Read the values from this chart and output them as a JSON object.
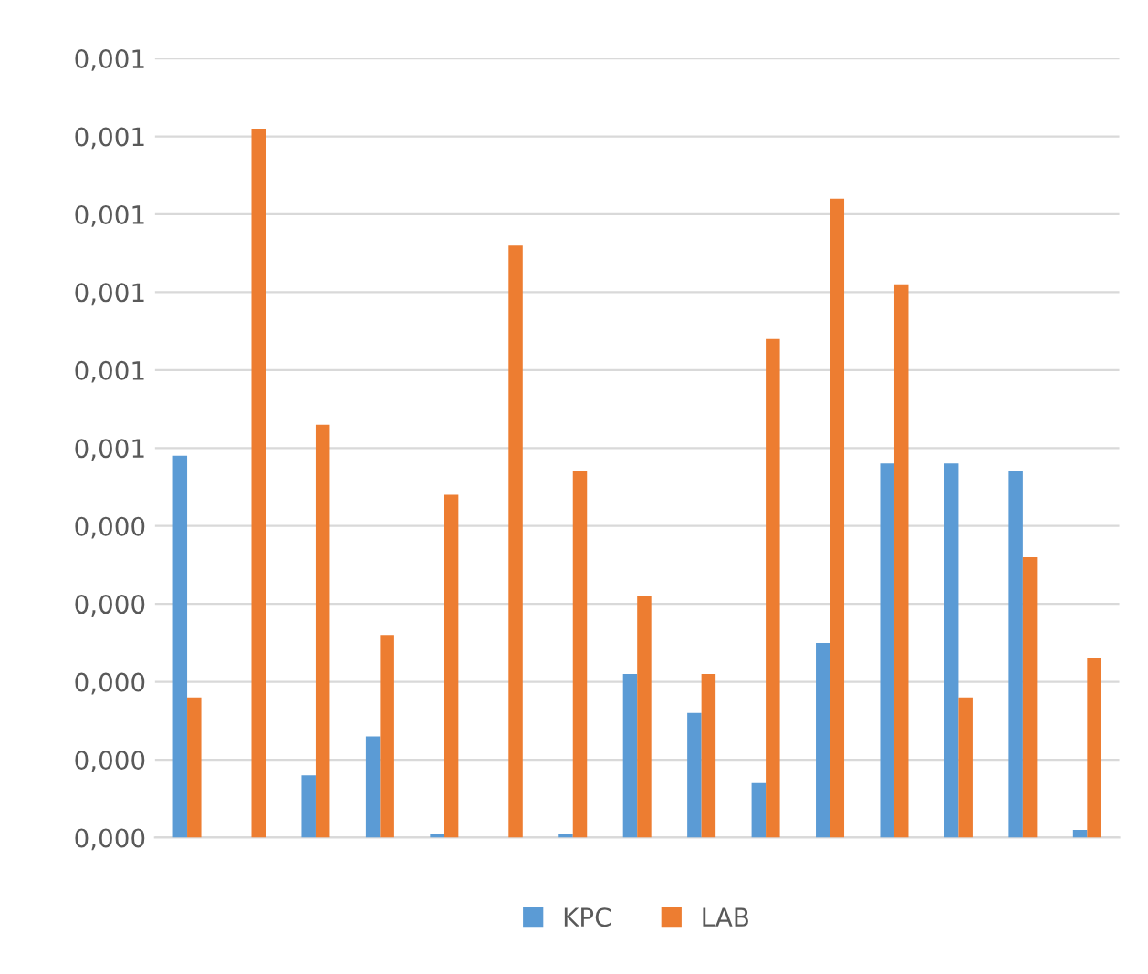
{
  "chart_data": {
    "type": "bar",
    "categories": [
      null,
      null,
      null,
      null,
      null,
      null,
      null,
      null,
      null,
      null,
      null,
      null,
      null,
      null,
      null
    ],
    "series": [
      {
        "name": "KPC",
        "color": "#5b9bd5",
        "values": [
          0.00049,
          0,
          8e-05,
          0.00013,
          5e-06,
          0,
          5e-06,
          0.00021,
          0.00016,
          7e-05,
          0.00025,
          0.00048,
          0.00048,
          0.00047,
          1e-05
        ]
      },
      {
        "name": "LAB",
        "color": "#ed7d31",
        "values": [
          0.00018,
          0.00091,
          0.00053,
          0.00026,
          0.00044,
          0.00076,
          0.00047,
          0.00031,
          0.00021,
          0.00064,
          0.00082,
          0.00071,
          0.00018,
          0.00036,
          0.00023
        ]
      }
    ],
    "ylim": [
      0,
      0.001
    ],
    "yticks": [
      {
        "value": 0,
        "label": "0,000"
      },
      {
        "value": 0.0001,
        "label": "0,000"
      },
      {
        "value": 0.0002,
        "label": "0,000"
      },
      {
        "value": 0.0003,
        "label": "0,000"
      },
      {
        "value": 0.0004,
        "label": "0,000"
      },
      {
        "value": 0.0005,
        "label": "0,001"
      },
      {
        "value": 0.0006,
        "label": "0,001"
      },
      {
        "value": 0.0007,
        "label": "0,001"
      },
      {
        "value": 0.0008,
        "label": "0,001"
      },
      {
        "value": 0.0009,
        "label": "0,001"
      },
      {
        "value": 0.001,
        "label": "0,001"
      }
    ],
    "grid": "y",
    "legend": "bottom"
  }
}
